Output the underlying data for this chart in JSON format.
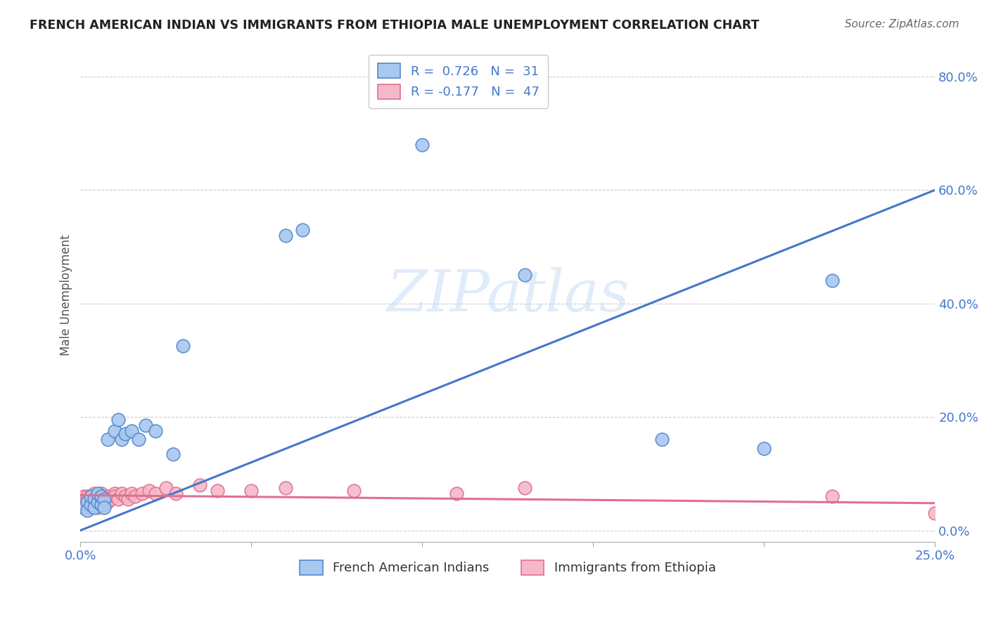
{
  "title": "FRENCH AMERICAN INDIAN VS IMMIGRANTS FROM ETHIOPIA MALE UNEMPLOYMENT CORRELATION CHART",
  "source": "Source: ZipAtlas.com",
  "ylabel": "Male Unemployment",
  "background_color": "#ffffff",
  "watermark_text": "ZIPatlas",
  "blue_face_color": "#a8c8f0",
  "blue_edge_color": "#5588cc",
  "pink_face_color": "#f5b8c8",
  "pink_edge_color": "#e07090",
  "blue_line_color": "#4477cc",
  "pink_line_color": "#e07090",
  "xlim": [
    0.0,
    0.25
  ],
  "ylim": [
    -0.02,
    0.85
  ],
  "blue_r": "0.726",
  "blue_n": "31",
  "pink_r": "-0.177",
  "pink_n": "47",
  "fai_x": [
    0.001,
    0.002,
    0.002,
    0.003,
    0.003,
    0.004,
    0.004,
    0.005,
    0.005,
    0.006,
    0.006,
    0.007,
    0.007,
    0.008,
    0.01,
    0.011,
    0.012,
    0.013,
    0.015,
    0.017,
    0.019,
    0.022,
    0.027,
    0.03,
    0.06,
    0.065,
    0.1,
    0.13,
    0.17,
    0.2,
    0.22
  ],
  "fai_y": [
    0.04,
    0.05,
    0.035,
    0.045,
    0.06,
    0.055,
    0.04,
    0.05,
    0.065,
    0.045,
    0.06,
    0.055,
    0.04,
    0.16,
    0.175,
    0.195,
    0.16,
    0.17,
    0.175,
    0.16,
    0.185,
    0.175,
    0.135,
    0.325,
    0.52,
    0.53,
    0.68,
    0.45,
    0.16,
    0.145,
    0.44
  ],
  "eth_x": [
    0.001,
    0.001,
    0.001,
    0.002,
    0.002,
    0.002,
    0.002,
    0.003,
    0.003,
    0.003,
    0.003,
    0.004,
    0.004,
    0.004,
    0.005,
    0.005,
    0.005,
    0.006,
    0.006,
    0.006,
    0.007,
    0.007,
    0.008,
    0.008,
    0.009,
    0.01,
    0.01,
    0.011,
    0.012,
    0.013,
    0.014,
    0.015,
    0.016,
    0.018,
    0.02,
    0.022,
    0.025,
    0.028,
    0.035,
    0.04,
    0.05,
    0.06,
    0.08,
    0.11,
    0.13,
    0.22,
    0.25
  ],
  "eth_y": [
    0.045,
    0.06,
    0.04,
    0.055,
    0.04,
    0.06,
    0.05,
    0.045,
    0.055,
    0.06,
    0.04,
    0.055,
    0.065,
    0.045,
    0.06,
    0.04,
    0.055,
    0.065,
    0.05,
    0.06,
    0.055,
    0.045,
    0.06,
    0.05,
    0.055,
    0.065,
    0.06,
    0.055,
    0.065,
    0.06,
    0.055,
    0.065,
    0.06,
    0.065,
    0.07,
    0.065,
    0.075,
    0.065,
    0.08,
    0.07,
    0.07,
    0.075,
    0.07,
    0.065,
    0.075,
    0.06,
    0.03
  ],
  "blue_line_x": [
    0.0,
    0.25
  ],
  "blue_line_y": [
    0.0,
    0.6
  ],
  "pink_line_x": [
    0.0,
    0.25
  ],
  "pink_line_y": [
    0.062,
    0.048
  ]
}
